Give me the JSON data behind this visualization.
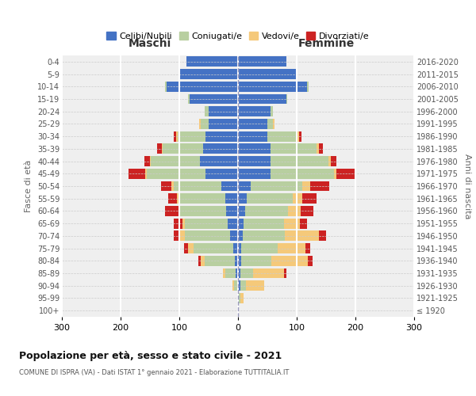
{
  "age_groups": [
    "100+",
    "95-99",
    "90-94",
    "85-89",
    "80-84",
    "75-79",
    "70-74",
    "65-69",
    "60-64",
    "55-59",
    "50-54",
    "45-49",
    "40-44",
    "35-39",
    "30-34",
    "25-29",
    "20-24",
    "15-19",
    "10-14",
    "5-9",
    "0-4"
  ],
  "birth_years": [
    "≤ 1920",
    "1921-1925",
    "1926-1930",
    "1931-1935",
    "1936-1940",
    "1941-1945",
    "1946-1950",
    "1951-1955",
    "1956-1960",
    "1961-1965",
    "1966-1970",
    "1971-1975",
    "1976-1980",
    "1981-1985",
    "1986-1990",
    "1991-1995",
    "1996-2000",
    "2001-2005",
    "2006-2010",
    "2011-2015",
    "2016-2020"
  ],
  "colors": {
    "celibe": "#4472c4",
    "coniugato": "#b8cfa0",
    "vedovo": "#f5c97a",
    "divorziato": "#cc2222"
  },
  "maschi": {
    "celibe": [
      0,
      0,
      2,
      4,
      5,
      8,
      13,
      18,
      20,
      22,
      28,
      55,
      65,
      60,
      55,
      50,
      50,
      82,
      122,
      102,
      88
    ],
    "coniugato": [
      0,
      0,
      5,
      18,
      52,
      68,
      78,
      72,
      78,
      78,
      82,
      100,
      83,
      68,
      48,
      14,
      7,
      3,
      2,
      0,
      0
    ],
    "vedovo": [
      0,
      0,
      2,
      4,
      7,
      9,
      9,
      4,
      4,
      4,
      3,
      3,
      2,
      2,
      2,
      2,
      0,
      0,
      0,
      0,
      0
    ],
    "divorziato": [
      0,
      0,
      0,
      0,
      4,
      7,
      10,
      16,
      22,
      15,
      18,
      28,
      10,
      8,
      4,
      0,
      0,
      0,
      0,
      0,
      0
    ]
  },
  "femmine": {
    "celibe": [
      0,
      2,
      4,
      4,
      5,
      5,
      8,
      10,
      12,
      15,
      22,
      56,
      56,
      56,
      50,
      50,
      55,
      82,
      118,
      102,
      82
    ],
    "coniugato": [
      0,
      2,
      10,
      22,
      52,
      62,
      72,
      68,
      73,
      78,
      88,
      108,
      98,
      78,
      52,
      10,
      4,
      2,
      2,
      0,
      0
    ],
    "vedovo": [
      0,
      5,
      30,
      52,
      62,
      48,
      58,
      28,
      22,
      16,
      13,
      4,
      4,
      4,
      2,
      2,
      0,
      0,
      0,
      0,
      0
    ],
    "divorziato": [
      0,
      0,
      0,
      4,
      8,
      8,
      12,
      12,
      22,
      25,
      32,
      32,
      10,
      6,
      4,
      0,
      0,
      0,
      0,
      0,
      0
    ]
  },
  "title": "Popolazione per età, sesso e stato civile - 2021",
  "subtitle": "COMUNE DI ISPRA (VA) - Dati ISTAT 1° gennaio 2021 - Elaborazione TUTTITALIA.IT",
  "xlabel_left": "Maschi",
  "xlabel_right": "Femmine",
  "ylabel_left": "Fasce di età",
  "ylabel_right": "Anni di nascita",
  "xlim": 300,
  "legend_labels": [
    "Celibi/Nubili",
    "Coniugati/e",
    "Vedovi/e",
    "Divorziati/e"
  ],
  "bg_color": "#efefef",
  "bar_height": 0.82
}
